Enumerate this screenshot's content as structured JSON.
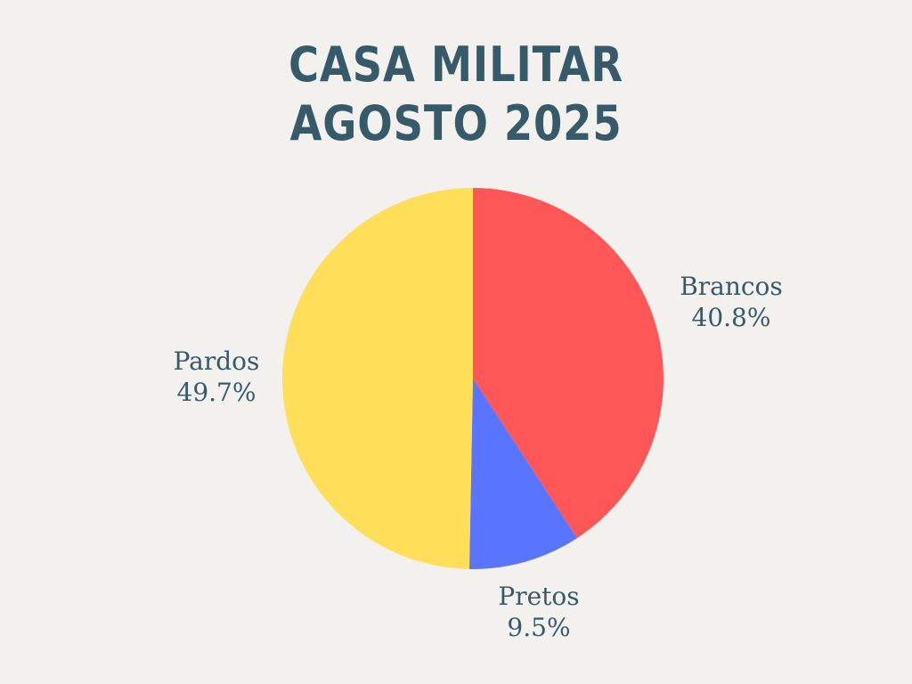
{
  "chart_data": {
    "type": "pie",
    "title_lines": [
      "CASA MILITAR",
      "AGOSTO 2025"
    ],
    "slices": [
      {
        "label": "Brancos",
        "value": 40.8,
        "value_label": "40.8%",
        "color": "#ff5757"
      },
      {
        "label": "Pretos",
        "value": 9.5,
        "value_label": "9.5%",
        "color": "#5974ff"
      },
      {
        "label": "Pardos",
        "value": 49.7,
        "value_label": "49.7%",
        "color": "#ffde59"
      }
    ],
    "start_angle": "12 o'clock",
    "direction": "clockwise",
    "legend": "none",
    "label_text_color": "#375a6b"
  }
}
